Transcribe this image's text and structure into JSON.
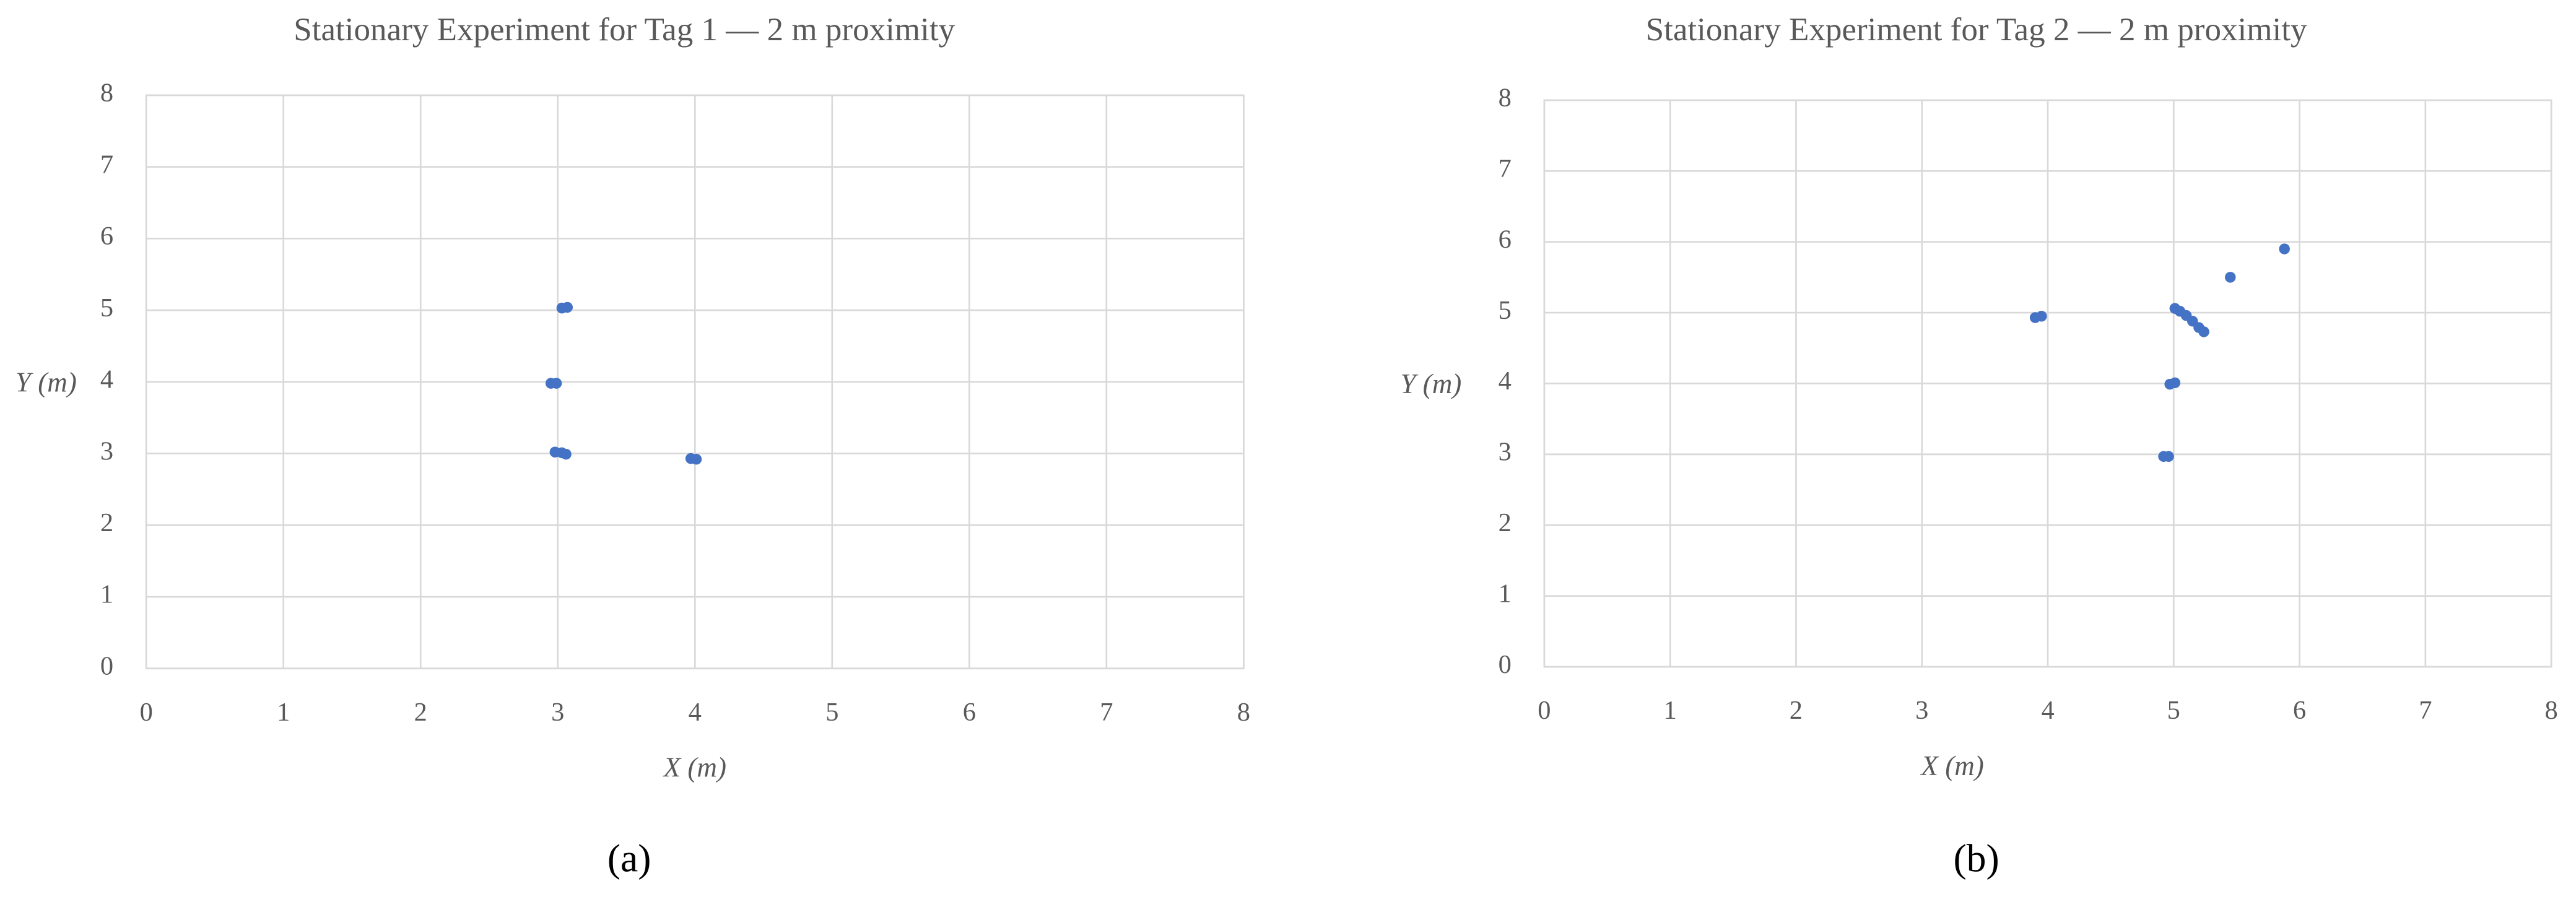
{
  "chart_data": [
    {
      "type": "scatter",
      "title": "Stationary Experiment for Tag 1 — 2 m proximity",
      "xlabel": "X (m)",
      "ylabel": "Y (m)",
      "label": "(a)",
      "x": [
        3.03,
        3.07,
        2.95,
        2.99,
        2.98,
        3.03,
        3.06,
        3.97,
        4.01
      ],
      "y": [
        5.03,
        5.04,
        3.98,
        3.98,
        3.02,
        3.01,
        2.99,
        2.93,
        2.92
      ],
      "color": "#4472c4",
      "xlim": [
        0,
        8
      ],
      "ylim": [
        0,
        8
      ],
      "xticks": [
        0,
        1,
        2,
        3,
        4,
        5,
        6,
        7,
        8
      ],
      "yticks": [
        0,
        1,
        2,
        3,
        4,
        5,
        6,
        7,
        8
      ],
      "grid": true
    },
    {
      "type": "scatter",
      "title": "Stationary Experiment for Tag 2 — 2 m proximity",
      "xlabel": "X (m)",
      "ylabel": "Y (m)",
      "label": "(b)",
      "x": [
        3.9,
        3.95,
        5.01,
        5.05,
        5.1,
        5.15,
        5.2,
        5.24,
        4.97,
        5.01,
        4.92,
        4.96,
        5.45,
        5.88
      ],
      "y": [
        4.93,
        4.95,
        5.06,
        5.02,
        4.96,
        4.88,
        4.79,
        4.73,
        3.99,
        4.01,
        2.97,
        2.97,
        5.5,
        5.9
      ],
      "color": "#4472c4",
      "xlim": [
        0,
        8
      ],
      "ylim": [
        0,
        8
      ],
      "xticks": [
        0,
        1,
        2,
        3,
        4,
        5,
        6,
        7,
        8
      ],
      "yticks": [
        0,
        1,
        2,
        3,
        4,
        5,
        6,
        7,
        8
      ],
      "grid": true
    }
  ]
}
